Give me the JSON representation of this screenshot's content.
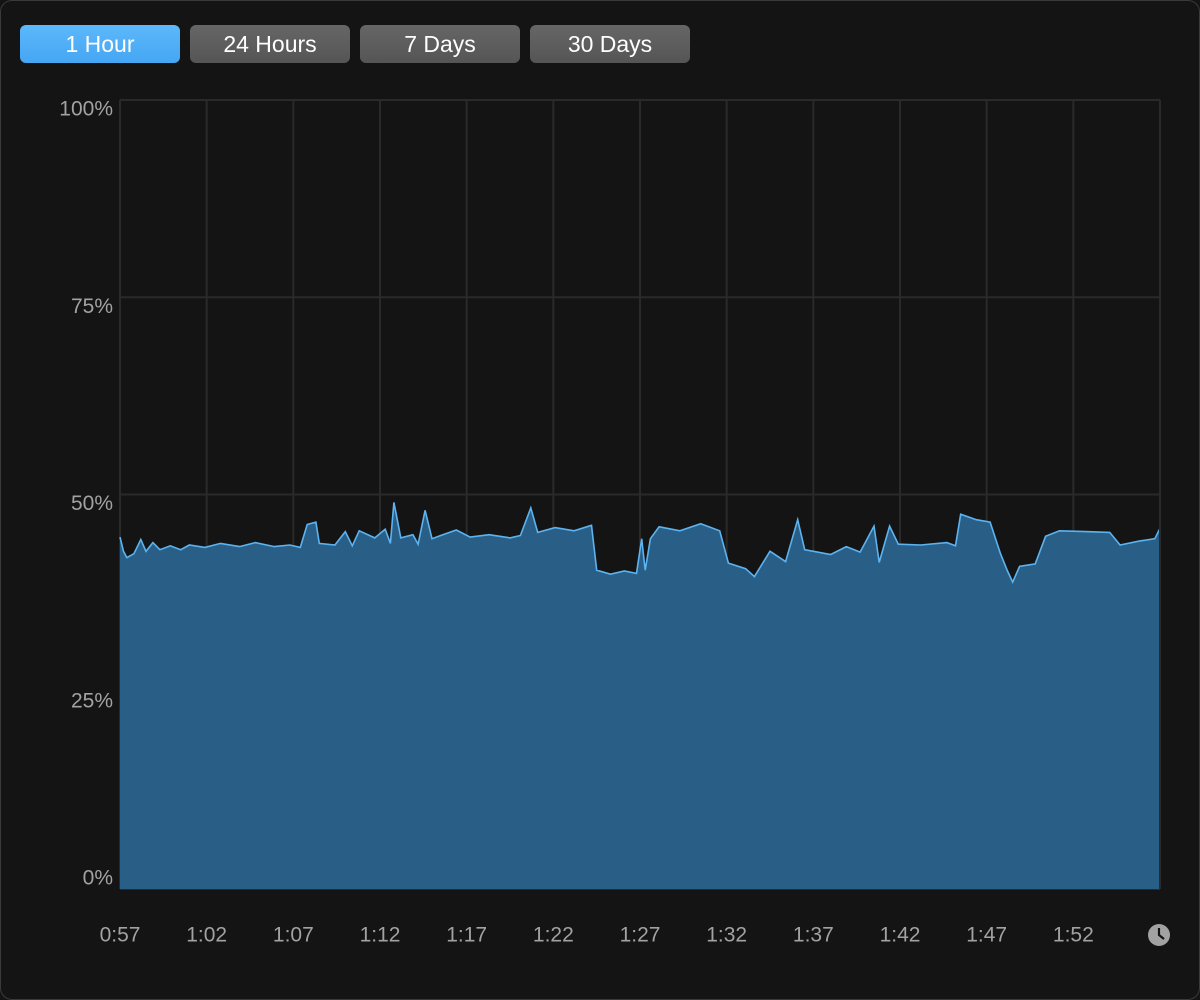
{
  "buttons": [
    "1 Hour",
    "24 Hours",
    "7 Days",
    "30 Days"
  ],
  "selected_button": 0,
  "chart_data": {
    "type": "area",
    "x": [
      57.0,
      57.2,
      57.4,
      57.8,
      58.2,
      58.5,
      58.9,
      59.3,
      59.9,
      60.5,
      61.0,
      61.9,
      62.8,
      63.9,
      64.8,
      65.9,
      66.8,
      67.4,
      67.8,
      68.3,
      68.5,
      69.4,
      70.0,
      70.4,
      70.8,
      71.7,
      72.3,
      72.6,
      72.8,
      73.2,
      73.9,
      74.2,
      74.6,
      75.0,
      75.5,
      76.4,
      77.2,
      78.3,
      79.5,
      80.1,
      80.7,
      81.1,
      82.1,
      83.2,
      84.2,
      84.5,
      85.3,
      86.1,
      86.8,
      87.1,
      87.3,
      87.6,
      88.1,
      89.3,
      90.5,
      91.6,
      92.1,
      93.1,
      93.6,
      94.5,
      95.4,
      96.1,
      96.5,
      98.0,
      98.9,
      99.7,
      100.5,
      100.8,
      101.4,
      101.9,
      103.2,
      104.7,
      105.2,
      105.5,
      106.4,
      107.2,
      107.8,
      108.2,
      108.5,
      108.9,
      109.8,
      110.4,
      111.2,
      112.7,
      114.1,
      114.7,
      115.8,
      116.7,
      117.0
    ],
    "series": [
      {
        "color": "#5cb3f0",
        "fill": "#295f87",
        "values": [
          44.6,
          42.8,
          42.0,
          42.5,
          44.3,
          42.8,
          43.9,
          43.0,
          43.5,
          43.0,
          43.6,
          43.3,
          43.8,
          43.4,
          43.9,
          43.4,
          43.6,
          43.3,
          46.2,
          46.5,
          43.8,
          43.6,
          45.3,
          43.5,
          45.4,
          44.5,
          45.6,
          43.8,
          49.0,
          44.5,
          44.9,
          43.7,
          48.0,
          44.4,
          44.8,
          45.5,
          44.6,
          44.9,
          44.5,
          44.8,
          48.3,
          45.2,
          45.8,
          45.4,
          46.1,
          40.4,
          39.9,
          40.3,
          40.0,
          44.4,
          40.4,
          44.4,
          45.9,
          45.4,
          46.3,
          45.4,
          41.3,
          40.6,
          39.6,
          42.8,
          41.5,
          46.8,
          43.0,
          42.4,
          43.4,
          42.7,
          46.0,
          41.4,
          46.0,
          43.7,
          43.6,
          43.9,
          43.5,
          47.5,
          46.8,
          46.5,
          42.5,
          40.3,
          38.9,
          40.9,
          41.2,
          44.7,
          45.4,
          45.3,
          45.2,
          43.6,
          44.1,
          44.4,
          45.7
        ]
      }
    ],
    "xlim": [
      57,
      117
    ],
    "xticks": [
      {
        "value": 57,
        "label": "0:57"
      },
      {
        "value": 62,
        "label": "1:02"
      },
      {
        "value": 67,
        "label": "1:07"
      },
      {
        "value": 72,
        "label": "1:12"
      },
      {
        "value": 77,
        "label": "1:17"
      },
      {
        "value": 82,
        "label": "1:22"
      },
      {
        "value": 87,
        "label": "1:27"
      },
      {
        "value": 92,
        "label": "1:32"
      },
      {
        "value": 97,
        "label": "1:37"
      },
      {
        "value": 102,
        "label": "1:42"
      },
      {
        "value": 107,
        "label": "1:47"
      },
      {
        "value": 112,
        "label": "1:52"
      }
    ],
    "ylim": [
      0,
      100
    ],
    "yticks": [
      {
        "value": 0,
        "label": "0%"
      },
      {
        "value": 25,
        "label": "25%"
      },
      {
        "value": 50,
        "label": "50%"
      },
      {
        "value": 75,
        "label": "75%"
      },
      {
        "value": 100,
        "label": "100%"
      }
    ],
    "grid": true
  }
}
